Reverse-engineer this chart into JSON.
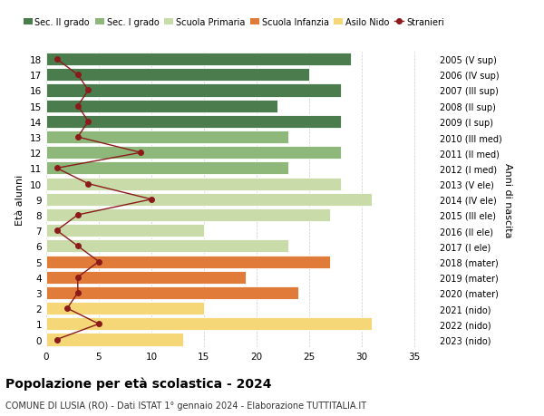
{
  "ages": [
    0,
    1,
    2,
    3,
    4,
    5,
    6,
    7,
    8,
    9,
    10,
    11,
    12,
    13,
    14,
    15,
    16,
    17,
    18
  ],
  "years": [
    "2023 (nido)",
    "2022 (nido)",
    "2021 (nido)",
    "2020 (mater)",
    "2019 (mater)",
    "2018 (mater)",
    "2017 (I ele)",
    "2016 (II ele)",
    "2015 (III ele)",
    "2014 (IV ele)",
    "2013 (V ele)",
    "2012 (I med)",
    "2011 (II med)",
    "2010 (III med)",
    "2009 (I sup)",
    "2008 (II sup)",
    "2007 (III sup)",
    "2006 (IV sup)",
    "2005 (V sup)"
  ],
  "bar_values": [
    13,
    31,
    15,
    24,
    19,
    27,
    23,
    15,
    27,
    31,
    28,
    23,
    28,
    23,
    28,
    22,
    28,
    25,
    29
  ],
  "bar_colors": [
    "#f5d778",
    "#f5d778",
    "#f5d778",
    "#e07b39",
    "#e07b39",
    "#e07b39",
    "#c8dba8",
    "#c8dba8",
    "#c8dba8",
    "#c8dba8",
    "#c8dba8",
    "#8db87a",
    "#8db87a",
    "#8db87a",
    "#4a7c4e",
    "#4a7c4e",
    "#4a7c4e",
    "#4a7c4e",
    "#4a7c4e"
  ],
  "stranieri_values": [
    1,
    5,
    2,
    3,
    3,
    5,
    3,
    1,
    3,
    10,
    4,
    1,
    9,
    3,
    4,
    3,
    4,
    3,
    1
  ],
  "legend_labels": [
    "Sec. II grado",
    "Sec. I grado",
    "Scuola Primaria",
    "Scuola Infanzia",
    "Asilo Nido",
    "Stranieri"
  ],
  "legend_colors": [
    "#4a7c4e",
    "#8db87a",
    "#c8dba8",
    "#e07b39",
    "#f5d778",
    "#8b1a1a"
  ],
  "title": "Popolazione per età scolastica - 2024",
  "subtitle": "COMUNE DI LUSIA (RO) - Dati ISTAT 1° gennaio 2024 - Elaborazione TUTTITALIA.IT",
  "ylabel_left": "Età alunni",
  "ylabel_right": "Anni di nascita",
  "xlim": [
    0,
    37
  ],
  "xticks": [
    0,
    5,
    10,
    15,
    20,
    25,
    30,
    35
  ],
  "stranieri_line_color": "#8b1a1a",
  "grid_color": "#cccccc",
  "background_color": "#ffffff"
}
